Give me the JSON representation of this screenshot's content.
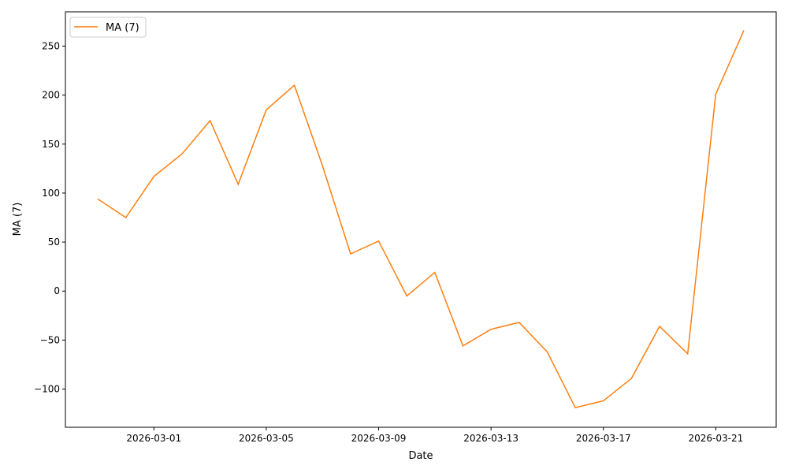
{
  "chart_data": {
    "type": "line",
    "title": "",
    "xlabel": "Date",
    "ylabel": "MA (7)",
    "x": [
      "2026-02-27",
      "2026-02-28",
      "2026-03-01",
      "2026-03-02",
      "2026-03-03",
      "2026-03-04",
      "2026-03-05",
      "2026-03-06",
      "2026-03-07",
      "2026-03-08",
      "2026-03-09",
      "2026-03-10",
      "2026-03-11",
      "2026-03-12",
      "2026-03-13",
      "2026-03-14",
      "2026-03-15",
      "2026-03-16",
      "2026-03-17",
      "2026-03-18",
      "2026-03-19",
      "2026-03-20",
      "2026-03-21",
      "2026-03-22"
    ],
    "series": [
      {
        "name": "MA (7)",
        "color": "#ff7f0e",
        "values": [
          94,
          75,
          117,
          140,
          174,
          109,
          185,
          210,
          128,
          38,
          51,
          -5,
          19,
          -56,
          -39,
          -32,
          -62,
          -119,
          -112,
          -89,
          -36,
          -64,
          201,
          266
        ]
      }
    ],
    "xlim": [
      "2026-02-25",
      "2026-03-23"
    ],
    "ylim": [
      -139,
      285
    ],
    "xticks": [
      "2026-03-01",
      "2026-03-05",
      "2026-03-09",
      "2026-03-13",
      "2026-03-17",
      "2026-03-21"
    ],
    "yticks": [
      -100,
      -50,
      0,
      50,
      100,
      150,
      200,
      250
    ],
    "grid": false,
    "legend": "top-left"
  }
}
